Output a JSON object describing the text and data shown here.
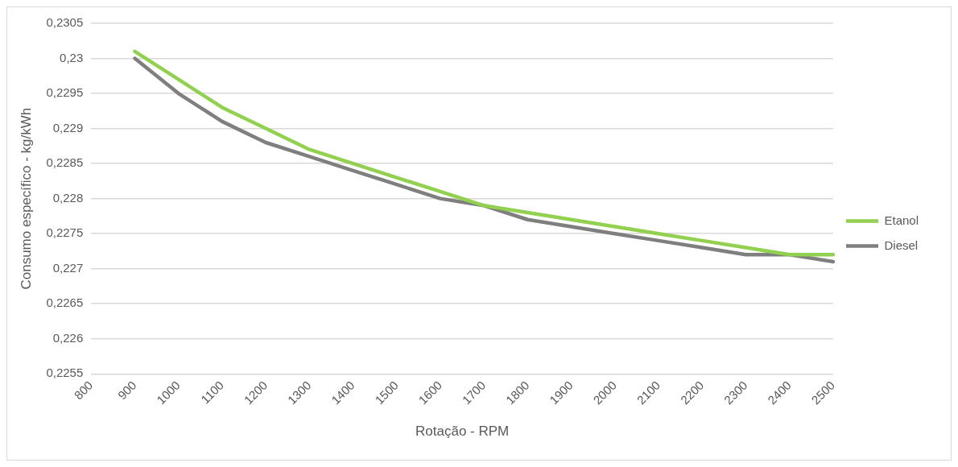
{
  "chart_data": {
    "type": "line",
    "xlabel": "Rotação - RPM",
    "ylabel": "Consumo específico - kg/kWh",
    "categories": [
      "800",
      "900",
      "1000",
      "1100",
      "1200",
      "1300",
      "1400",
      "1500",
      "1600",
      "1700",
      "1800",
      "1900",
      "2000",
      "2100",
      "2200",
      "2300",
      "2400",
      "2500"
    ],
    "series": [
      {
        "name": "Etanol",
        "color": "#92d050",
        "values": [
          null,
          0.2301,
          0.2297,
          0.2293,
          0.229,
          0.2287,
          0.2285,
          0.2283,
          0.2281,
          0.2279,
          0.2278,
          0.2277,
          0.2276,
          0.2275,
          0.2274,
          0.2273,
          0.2272,
          0.2272
        ]
      },
      {
        "name": "Diesel",
        "color": "#7f7f7f",
        "values": [
          null,
          0.23,
          0.2295,
          0.2291,
          0.2288,
          0.2286,
          0.2284,
          0.2282,
          0.228,
          0.2279,
          0.2277,
          0.2276,
          0.2275,
          0.2274,
          0.2273,
          0.2272,
          0.2272,
          0.2271
        ]
      }
    ],
    "ylim": [
      0.2255,
      0.2305
    ],
    "yticks": [
      {
        "value": 0.2255,
        "label": "0,2255"
      },
      {
        "value": 0.226,
        "label": "0,226"
      },
      {
        "value": 0.2265,
        "label": "0,2265"
      },
      {
        "value": 0.227,
        "label": "0,227"
      },
      {
        "value": 0.2275,
        "label": "0,2275"
      },
      {
        "value": 0.228,
        "label": "0,228"
      },
      {
        "value": 0.2285,
        "label": "0,2285"
      },
      {
        "value": 0.229,
        "label": "0,229"
      },
      {
        "value": 0.2295,
        "label": "0,2295"
      },
      {
        "value": 0.23,
        "label": "0,23"
      },
      {
        "value": 0.2305,
        "label": "0,2305"
      }
    ],
    "grid": "y",
    "legend": "right",
    "marker": "none",
    "line_style": "solid"
  }
}
